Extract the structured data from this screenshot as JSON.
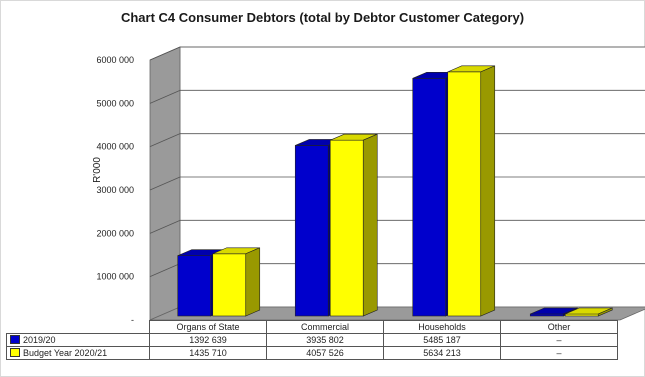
{
  "chart_data": {
    "type": "bar",
    "title": "Chart C4 Consumer Debtors (total by Debtor Customer Category)",
    "ylabel": "R'000",
    "ylim": [
      0,
      6000000
    ],
    "yticks": [
      "-",
      "1000 000",
      "2000 000",
      "3000 000",
      "4000 000",
      "5000 000",
      "6000 000"
    ],
    "categories": [
      "Organs of State",
      "Commercial",
      "Households",
      "Other"
    ],
    "grid": true,
    "three_d": true,
    "legend": "data table below chart",
    "series": [
      {
        "name": "2019/20",
        "color": "#0000cc",
        "values": [
          1392639,
          3935802,
          5485187,
          0
        ],
        "labels": [
          "1392 639",
          "3935 802",
          "5485 187",
          "–"
        ]
      },
      {
        "name": "Budget Year 2020/21",
        "color": "#ffff00",
        "values": [
          1435710,
          4057526,
          5634213,
          0
        ],
        "labels": [
          "1435 710",
          "4057 526",
          "5634 213",
          "–"
        ]
      }
    ]
  }
}
